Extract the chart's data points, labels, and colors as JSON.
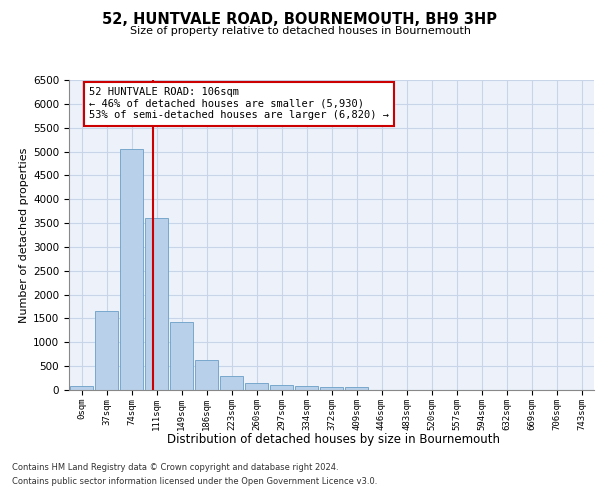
{
  "title_main": "52, HUNTVALE ROAD, BOURNEMOUTH, BH9 3HP",
  "title_sub": "Size of property relative to detached houses in Bournemouth",
  "xlabel": "Distribution of detached houses by size in Bournemouth",
  "ylabel": "Number of detached properties",
  "footer_line1": "Contains HM Land Registry data © Crown copyright and database right 2024.",
  "footer_line2": "Contains public sector information licensed under the Open Government Licence v3.0.",
  "bar_labels": [
    "0sqm",
    "37sqm",
    "74sqm",
    "111sqm",
    "149sqm",
    "186sqm",
    "223sqm",
    "260sqm",
    "297sqm",
    "334sqm",
    "372sqm",
    "409sqm",
    "446sqm",
    "483sqm",
    "520sqm",
    "557sqm",
    "594sqm",
    "632sqm",
    "669sqm",
    "706sqm",
    "743sqm"
  ],
  "bar_values": [
    75,
    1650,
    5060,
    3600,
    1420,
    620,
    300,
    155,
    110,
    75,
    60,
    55,
    0,
    0,
    0,
    0,
    0,
    0,
    0,
    0,
    0
  ],
  "bar_color": "#b8d0ea",
  "bar_edge_color": "#6a9fc8",
  "grid_color": "#c8d4e8",
  "annotation_text": "52 HUNTVALE ROAD: 106sqm\n← 46% of detached houses are smaller (5,930)\n53% of semi-detached houses are larger (6,820) →",
  "vline_x": 2.85,
  "vline_color": "#cc0000",
  "annotation_box_color": "#cc0000",
  "ylim": [
    0,
    6500
  ],
  "yticks": [
    0,
    500,
    1000,
    1500,
    2000,
    2500,
    3000,
    3500,
    4000,
    4500,
    5000,
    5500,
    6000,
    6500
  ],
  "background_color": "#edf2fa"
}
